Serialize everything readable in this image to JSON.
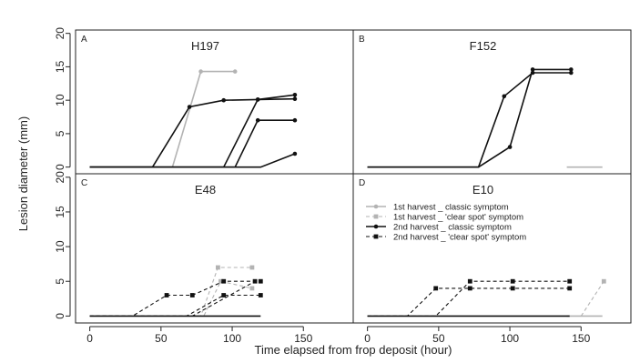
{
  "figure": {
    "xlabel": "Time elapsed from frop deposit (hour)",
    "ylabel": "Lesion diameter (mm)",
    "x_ticks": [
      "0",
      "50",
      "100",
      "150"
    ],
    "y_ticks": [
      "0",
      "5",
      "10",
      "15",
      "20"
    ],
    "x_tick_values": [
      0,
      50,
      100,
      150
    ],
    "y_tick_values": [
      0,
      5,
      10,
      15,
      20
    ],
    "xlim": [
      -10,
      185
    ],
    "ylim": [
      -1,
      20.5
    ]
  },
  "legend": {
    "items": [
      {
        "label": "1st harvest _ classic symptom",
        "color": "#b3b3b3",
        "dash": "solid",
        "marker": "circle"
      },
      {
        "label": "1st harvest _ 'clear spot' symptom",
        "color": "#b3b3b3",
        "dash": "dashed",
        "marker": "square"
      },
      {
        "label": "2nd harvest _ classic symptom",
        "color": "#111111",
        "dash": "solid",
        "marker": "circle"
      },
      {
        "label": "2nd harvest _ 'clear spot' symptom",
        "color": "#111111",
        "dash": "dashed",
        "marker": "square"
      }
    ]
  },
  "chart_data": [
    {
      "type": "line",
      "panel": "A",
      "title": "H197",
      "xlim": [
        -10,
        185
      ],
      "ylim": [
        -1,
        20.5
      ],
      "series": [
        {
          "group": "1st harvest _ classic symptom",
          "color": "#b3b3b3",
          "dash": "solid",
          "marker": "circle",
          "x": [
            0,
            58,
            78,
            102
          ],
          "y": [
            0,
            0,
            14.3,
            14.3
          ]
        },
        {
          "group": "2nd harvest _ classic symptom",
          "color": "#111111",
          "dash": "solid",
          "marker": "circle",
          "x": [
            0,
            44,
            70,
            94,
            118,
            144
          ],
          "y": [
            0,
            0,
            9,
            10,
            10.1,
            10.2
          ]
        },
        {
          "group": "2nd harvest _ classic symptom",
          "color": "#111111",
          "dash": "solid",
          "marker": "circle",
          "x": [
            0,
            94,
            118,
            144
          ],
          "y": [
            0,
            0,
            10.1,
            10.8
          ]
        },
        {
          "group": "2nd harvest _ classic symptom",
          "color": "#111111",
          "dash": "solid",
          "marker": "circle",
          "x": [
            0,
            102,
            118,
            144
          ],
          "y": [
            0,
            0,
            7,
            7
          ]
        },
        {
          "group": "2nd harvest _ classic symptom",
          "color": "#111111",
          "dash": "solid",
          "marker": "circle",
          "x": [
            0,
            120,
            144
          ],
          "y": [
            0,
            0,
            2
          ]
        }
      ]
    },
    {
      "type": "line",
      "panel": "B",
      "title": "F152",
      "xlim": [
        -10,
        185
      ],
      "ylim": [
        -1,
        20.5
      ],
      "series": [
        {
          "group": "1st harvest _ classic symptom",
          "color": "#b3b3b3",
          "dash": "solid",
          "marker": "none",
          "x": [
            140,
            165
          ],
          "y": [
            0,
            0
          ]
        },
        {
          "group": "2nd harvest _ classic symptom",
          "color": "#111111",
          "dash": "solid",
          "marker": "circle",
          "x": [
            0,
            78,
            96,
            116,
            143
          ],
          "y": [
            0,
            0,
            10.6,
            14.1,
            14.1
          ]
        },
        {
          "group": "2nd harvest _ classic symptom",
          "color": "#111111",
          "dash": "solid",
          "marker": "circle",
          "x": [
            0,
            78,
            100,
            116,
            143
          ],
          "y": [
            0,
            0,
            3,
            14.6,
            14.6
          ]
        }
      ]
    },
    {
      "type": "line",
      "panel": "C",
      "title": "E48",
      "xlim": [
        -10,
        185
      ],
      "ylim": [
        -1,
        20.5
      ],
      "series": [
        {
          "group": "1st harvest _ 'clear spot' symptom",
          "color": "#b3b3b3",
          "dash": "dashed",
          "marker": "square",
          "x": [
            0,
            78,
            90,
            114
          ],
          "y": [
            0,
            0,
            7,
            7
          ]
        },
        {
          "group": "1st harvest _ 'clear spot' symptom",
          "color": "#b3b3b3",
          "dash": "dashed",
          "marker": "square",
          "x": [
            0,
            80,
            92,
            114
          ],
          "y": [
            0,
            0,
            5,
            4
          ]
        },
        {
          "group": "2nd harvest _ classic symptom",
          "color": "#111111",
          "dash": "solid",
          "marker": "none",
          "x": [
            0,
            120
          ],
          "y": [
            0,
            0
          ]
        },
        {
          "group": "2nd harvest _ 'clear spot' symptom",
          "color": "#111111",
          "dash": "dashed",
          "marker": "square",
          "x": [
            0,
            30,
            54,
            72,
            94,
            120
          ],
          "y": [
            0,
            0,
            3,
            3,
            5,
            5
          ]
        },
        {
          "group": "2nd harvest _ 'clear spot' symptom",
          "color": "#111111",
          "dash": "dashed",
          "marker": "square",
          "x": [
            0,
            68,
            94,
            120
          ],
          "y": [
            0,
            0,
            3,
            3
          ]
        },
        {
          "group": "2nd harvest _ 'clear spot' symptom",
          "color": "#111111",
          "dash": "dashed",
          "marker": "square",
          "x": [
            0,
            72,
            116
          ],
          "y": [
            0,
            0,
            5
          ]
        }
      ]
    },
    {
      "type": "line",
      "panel": "D",
      "title": "E10",
      "xlim": [
        -10,
        185
      ],
      "ylim": [
        -1,
        20.5
      ],
      "series": [
        {
          "group": "1st harvest _ classic symptom",
          "color": "#b3b3b3",
          "dash": "solid",
          "marker": "none",
          "x": [
            140,
            165
          ],
          "y": [
            0,
            0
          ]
        },
        {
          "group": "1st harvest _ 'clear spot' symptom",
          "color": "#b3b3b3",
          "dash": "dashed",
          "marker": "square",
          "x": [
            150,
            166
          ],
          "y": [
            0,
            5
          ]
        },
        {
          "group": "2nd harvest _ classic symptom",
          "color": "#111111",
          "dash": "solid",
          "marker": "none",
          "x": [
            0,
            142
          ],
          "y": [
            0,
            0
          ]
        },
        {
          "group": "2nd harvest _ 'clear spot' symptom",
          "color": "#111111",
          "dash": "dashed",
          "marker": "square",
          "x": [
            0,
            28,
            48,
            72,
            102,
            142
          ],
          "y": [
            0,
            0,
            4,
            4,
            4,
            4
          ]
        },
        {
          "group": "2nd harvest _ 'clear spot' symptom",
          "color": "#111111",
          "dash": "dashed",
          "marker": "square",
          "x": [
            0,
            48,
            72,
            102,
            142
          ],
          "y": [
            0,
            0,
            5,
            5,
            5
          ]
        }
      ]
    }
  ]
}
